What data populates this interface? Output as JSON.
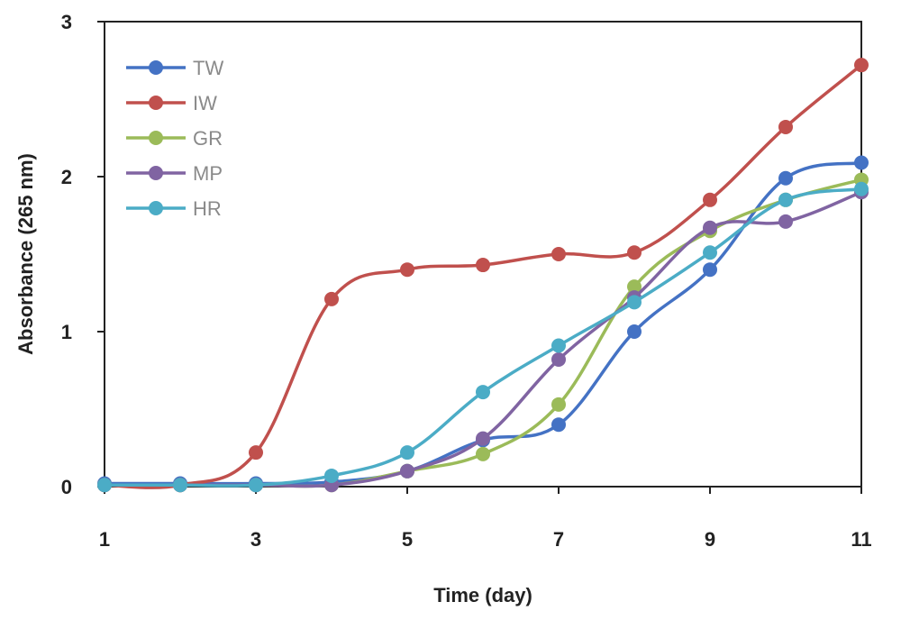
{
  "chart_data": {
    "type": "line",
    "title": "",
    "xlabel": "Time (day)",
    "ylabel": "Absorbance (265 nm)",
    "xlim": [
      1,
      11
    ],
    "ylim": [
      0,
      3
    ],
    "x_ticks": [
      1,
      3,
      5,
      7,
      9,
      11
    ],
    "y_ticks": [
      0,
      1,
      2,
      3
    ],
    "grid": false,
    "legend_position": "top-left",
    "x": [
      1,
      2,
      3,
      4,
      5,
      6,
      7,
      8,
      9,
      10,
      11
    ],
    "series": [
      {
        "name": "TW",
        "color": "#4472C4",
        "values": [
          0.02,
          0.02,
          0.02,
          0.03,
          0.1,
          0.3,
          0.4,
          1.0,
          1.4,
          1.99,
          2.09
        ]
      },
      {
        "name": "IW",
        "color": "#C0504D",
        "values": [
          0.01,
          0.01,
          0.22,
          1.21,
          1.4,
          1.43,
          1.5,
          1.51,
          1.85,
          2.32,
          2.72
        ]
      },
      {
        "name": "GR",
        "color": "#9BBB59",
        "values": [
          0.01,
          0.01,
          0.01,
          0.01,
          0.1,
          0.21,
          0.53,
          1.29,
          1.65,
          1.85,
          1.98
        ]
      },
      {
        "name": "MP",
        "color": "#8064A2",
        "values": [
          0.01,
          0.01,
          0.01,
          0.01,
          0.1,
          0.31,
          0.82,
          1.22,
          1.67,
          1.71,
          1.9
        ]
      },
      {
        "name": "HR",
        "color": "#4BACC6",
        "values": [
          0.01,
          0.01,
          0.01,
          0.07,
          0.22,
          0.61,
          0.91,
          1.19,
          1.51,
          1.85,
          1.92
        ]
      }
    ]
  }
}
